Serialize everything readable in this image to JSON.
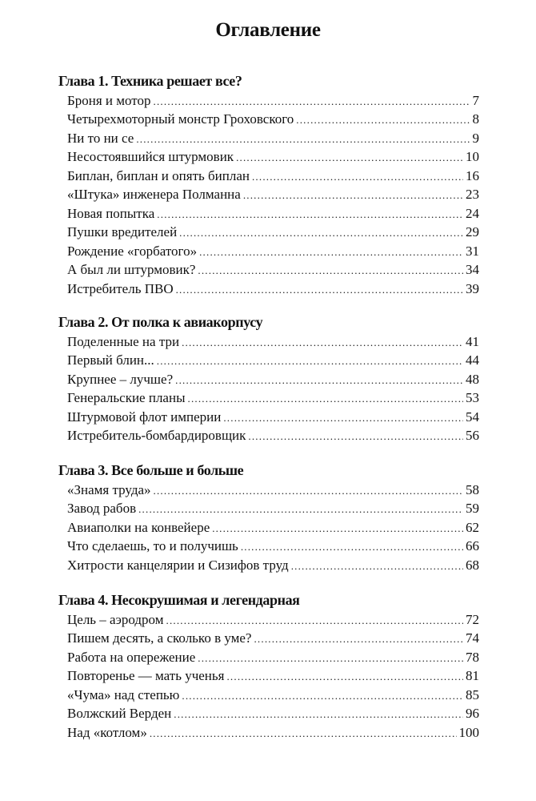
{
  "title": "Оглавление",
  "chapters": [
    {
      "heading": "Глава 1. Техника решает все?",
      "entries": [
        {
          "title": "Броня и мотор",
          "page": "7"
        },
        {
          "title": "Четырехмоторный монстр Гроховского",
          "page": "8"
        },
        {
          "title": "Ни то ни се",
          "page": "9"
        },
        {
          "title": "Несостоявшийся штурмовик",
          "page": "10"
        },
        {
          "title": "Биплан, биплан и опять биплан",
          "page": "16"
        },
        {
          "title": "«Штука» инженера Полманна",
          "page": "23"
        },
        {
          "title": "Новая попытка",
          "page": "24"
        },
        {
          "title": "Пушки вредителей",
          "page": "29"
        },
        {
          "title": "Рождение «горбатого»",
          "page": "31"
        },
        {
          "title": "А был ли штурмовик?",
          "page": "34"
        },
        {
          "title": "Истребитель ПВО",
          "page": "39"
        }
      ]
    },
    {
      "heading": "Глава 2. От полка к авиакорпусу",
      "entries": [
        {
          "title": "Поделенные на три",
          "page": "41"
        },
        {
          "title": "Первый блин...",
          "page": "44"
        },
        {
          "title": "Крупнее – лучше?",
          "page": "48"
        },
        {
          "title": "Генеральские планы",
          "page": "53"
        },
        {
          "title": "Штурмовой флот империи",
          "page": "54"
        },
        {
          "title": "Истребитель-бомбардировщик",
          "page": "56"
        }
      ]
    },
    {
      "heading": "Глава 3. Все больше и больше",
      "entries": [
        {
          "title": "«Знамя труда»",
          "page": "58"
        },
        {
          "title": "Завод рабов",
          "page": "59"
        },
        {
          "title": "Авиаполки на конвейере",
          "page": "62"
        },
        {
          "title": "Что сделаешь, то и получишь",
          "page": "66"
        },
        {
          "title": "Хитрости канцелярии и Сизифов труд",
          "page": "68"
        }
      ]
    },
    {
      "heading": "Глава 4. Несокрушимая и легендарная",
      "entries": [
        {
          "title": "Цель – аэродром",
          "page": "72"
        },
        {
          "title": "Пишем десять, а сколько в уме?",
          "page": "74"
        },
        {
          "title": "Работа на опережение",
          "page": "78"
        },
        {
          "title": "Повторенье — мать ученья",
          "page": "81"
        },
        {
          "title": "«Чума» над степью",
          "page": "85"
        },
        {
          "title": "Волжский Верден",
          "page": "96"
        },
        {
          "title": "Над «котлом»",
          "page": "100"
        }
      ]
    }
  ]
}
